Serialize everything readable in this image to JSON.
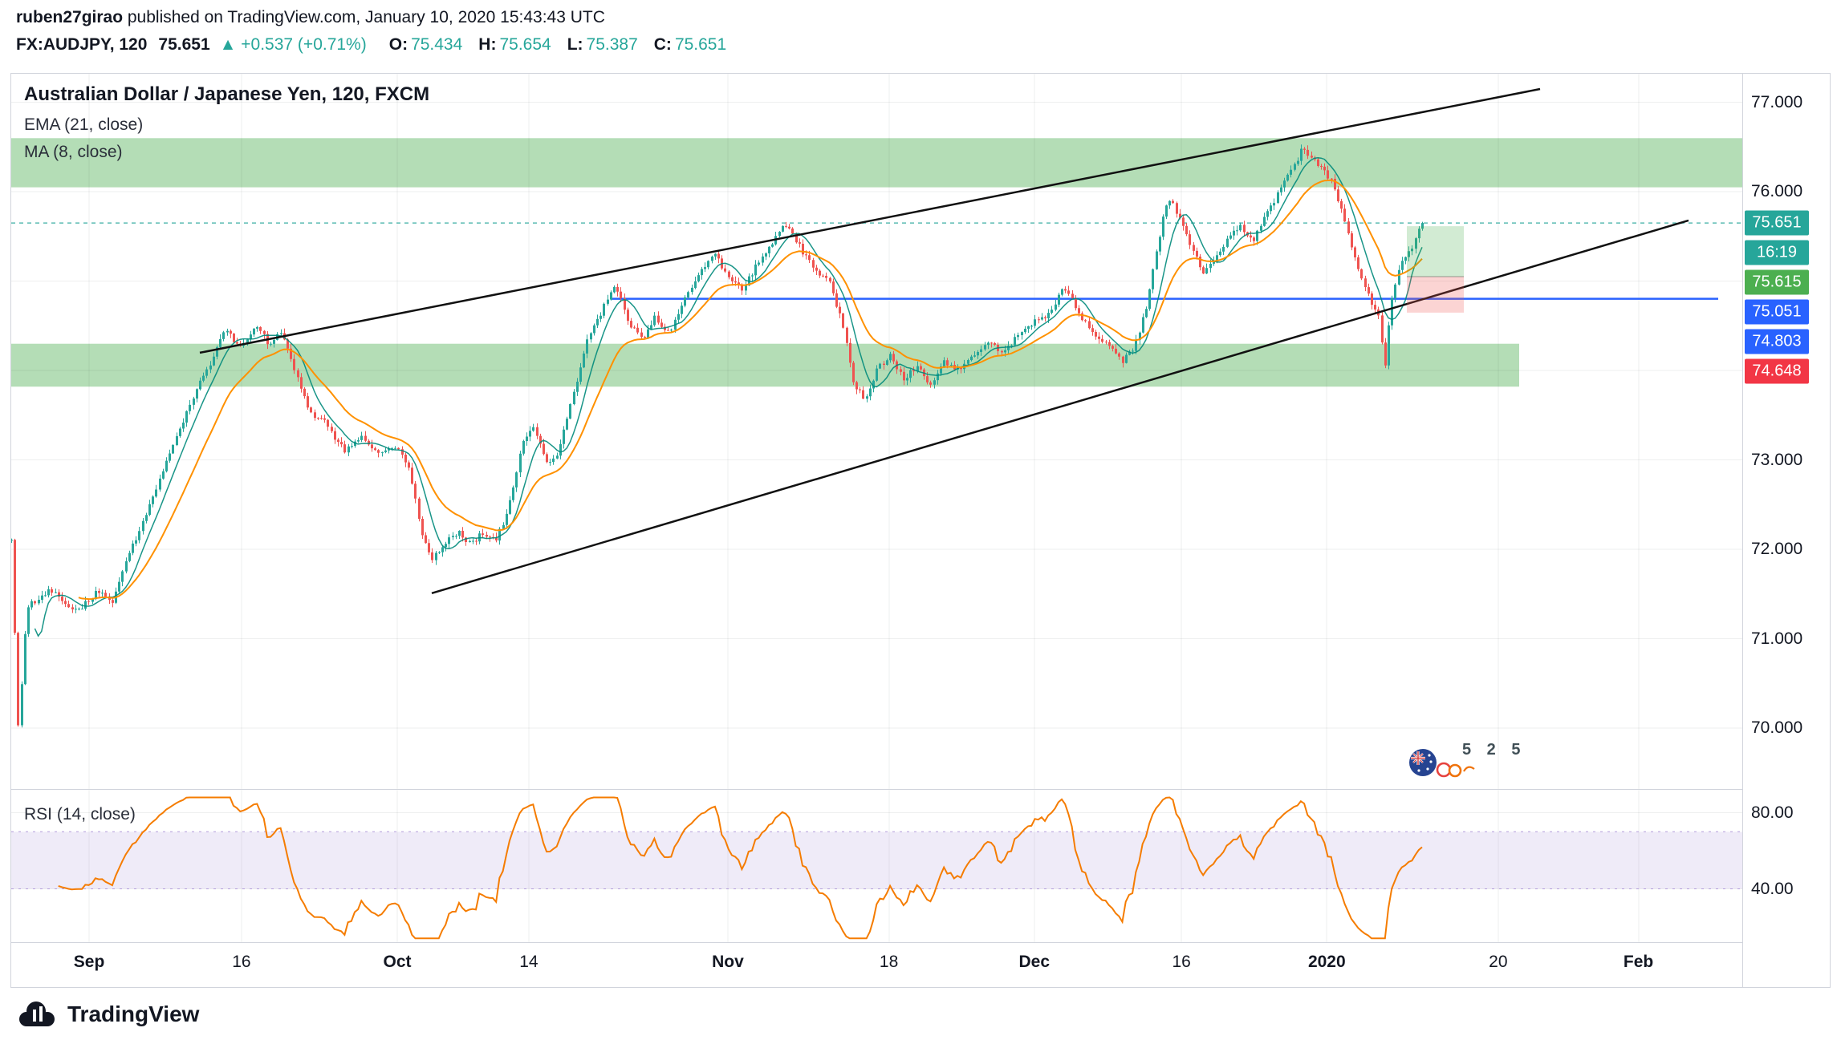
{
  "header": {
    "author": "ruben27girao",
    "published_text": " published on TradingView.com, January 10, 2020 15:43:43 UTC",
    "symbol": "FX:AUDJPY, 120",
    "last_price": "75.651",
    "change_arrow": "▲",
    "change_text": "+0.537 (+0.71%)",
    "ohlc": [
      {
        "label": "O:",
        "value": "75.434"
      },
      {
        "label": "H:",
        "value": "75.654"
      },
      {
        "label": "L:",
        "value": "75.387"
      },
      {
        "label": "C:",
        "value": "75.651"
      }
    ]
  },
  "legend": {
    "title": "Australian Dollar / Japanese Yen, 120, FXCM",
    "ema": "EMA (21, close)",
    "ma": "MA (8, close)",
    "rsi": "RSI (14, close)"
  },
  "watermark": {
    "digits": "5 2 5"
  },
  "price_scale": {
    "labels": [
      {
        "text": "77.000",
        "price": 77.0
      },
      {
        "text": "76.000",
        "price": 76.0
      },
      {
        "text": "73.000",
        "price": 73.0
      },
      {
        "text": "72.000",
        "price": 72.0
      },
      {
        "text": "71.000",
        "price": 71.0
      },
      {
        "text": "70.000",
        "price": 70.0
      }
    ],
    "badges": [
      {
        "text": "75.651",
        "price": 75.651,
        "color": "#26a69a",
        "name": "last-price"
      },
      {
        "text": "16:19",
        "countdown": true,
        "color": "#26a69a",
        "name": "countdown"
      },
      {
        "text": "75.615",
        "price": 75.615,
        "color": "#4caf50",
        "name": "target-level"
      },
      {
        "text": "75.051",
        "price": 75.051,
        "color": "#2962ff",
        "name": "entry-level"
      },
      {
        "text": "74.803",
        "price": 74.803,
        "color": "#2962ff",
        "name": "blue-level"
      },
      {
        "text": "74.648",
        "price": 74.648,
        "color": "#f23645",
        "name": "stop-level"
      }
    ]
  },
  "rsi_scale": {
    "labels": [
      {
        "text": "80.00",
        "value": 80
      },
      {
        "text": "40.00",
        "value": 40
      }
    ]
  },
  "footer": {
    "brand": "TradingView"
  },
  "chart_data": {
    "type": "candlestick",
    "title": "Australian Dollar / Japanese Yen, 120, FXCM",
    "symbol": "FX:AUDJPY",
    "interval_minutes": 120,
    "exchange": "FXCM",
    "last": {
      "open": 75.434,
      "high": 75.654,
      "low": 75.387,
      "close": 75.651,
      "change": "+0.537 (+0.71%)"
    },
    "y_axis": {
      "visible_min": 69.32,
      "visible_max": 77.32,
      "gridlines": [
        70,
        71,
        72,
        73,
        74,
        75,
        76,
        77
      ]
    },
    "x_axis": {
      "labels": [
        {
          "label": "Sep",
          "t": 0.045,
          "bold": true
        },
        {
          "label": "16",
          "t": 0.133,
          "bold": false
        },
        {
          "label": "Oct",
          "t": 0.223,
          "bold": true
        },
        {
          "label": "14",
          "t": 0.299,
          "bold": false
        },
        {
          "label": "Nov",
          "t": 0.414,
          "bold": true
        },
        {
          "label": "18",
          "t": 0.507,
          "bold": false
        },
        {
          "label": "Dec",
          "t": 0.591,
          "bold": true
        },
        {
          "label": "16",
          "t": 0.676,
          "bold": false
        },
        {
          "label": "2020",
          "t": 0.76,
          "bold": true
        },
        {
          "label": "20",
          "t": 0.859,
          "bold": false
        },
        {
          "label": "Feb",
          "t": 0.94,
          "bold": true
        }
      ]
    },
    "candle_count": 420,
    "candle_region_end": 0.815,
    "price_waypoints": [
      [
        0.0,
        72.1
      ],
      [
        0.004,
        70.0
      ],
      [
        0.009,
        71.35
      ],
      [
        0.022,
        71.55
      ],
      [
        0.038,
        71.3
      ],
      [
        0.05,
        71.55
      ],
      [
        0.058,
        71.4
      ],
      [
        0.065,
        71.8
      ],
      [
        0.078,
        72.4
      ],
      [
        0.092,
        73.1
      ],
      [
        0.105,
        73.7
      ],
      [
        0.115,
        74.1
      ],
      [
        0.124,
        74.45
      ],
      [
        0.132,
        74.25
      ],
      [
        0.141,
        74.5
      ],
      [
        0.149,
        74.3
      ],
      [
        0.155,
        74.45
      ],
      [
        0.163,
        74.05
      ],
      [
        0.172,
        73.55
      ],
      [
        0.182,
        73.4
      ],
      [
        0.192,
        73.1
      ],
      [
        0.202,
        73.25
      ],
      [
        0.212,
        73.05
      ],
      [
        0.222,
        73.15
      ],
      [
        0.23,
        72.9
      ],
      [
        0.237,
        72.2
      ],
      [
        0.243,
        71.9
      ],
      [
        0.25,
        72.05
      ],
      [
        0.258,
        72.2
      ],
      [
        0.265,
        72.05
      ],
      [
        0.272,
        72.2
      ],
      [
        0.28,
        72.1
      ],
      [
        0.287,
        72.45
      ],
      [
        0.295,
        73.2
      ],
      [
        0.302,
        73.35
      ],
      [
        0.309,
        72.95
      ],
      [
        0.316,
        73.1
      ],
      [
        0.324,
        73.7
      ],
      [
        0.333,
        74.35
      ],
      [
        0.342,
        74.7
      ],
      [
        0.349,
        74.95
      ],
      [
        0.356,
        74.55
      ],
      [
        0.364,
        74.35
      ],
      [
        0.372,
        74.6
      ],
      [
        0.38,
        74.4
      ],
      [
        0.389,
        74.85
      ],
      [
        0.398,
        75.1
      ],
      [
        0.406,
        75.35
      ],
      [
        0.413,
        75.05
      ],
      [
        0.422,
        74.9
      ],
      [
        0.431,
        75.2
      ],
      [
        0.44,
        75.45
      ],
      [
        0.448,
        75.65
      ],
      [
        0.455,
        75.4
      ],
      [
        0.463,
        75.15
      ],
      [
        0.472,
        75.0
      ],
      [
        0.48,
        74.55
      ],
      [
        0.487,
        73.8
      ],
      [
        0.493,
        73.7
      ],
      [
        0.5,
        74.0
      ],
      [
        0.508,
        74.2
      ],
      [
        0.515,
        73.9
      ],
      [
        0.523,
        74.05
      ],
      [
        0.531,
        73.85
      ],
      [
        0.539,
        74.1
      ],
      [
        0.547,
        74.0
      ],
      [
        0.556,
        74.2
      ],
      [
        0.565,
        74.3
      ],
      [
        0.574,
        74.2
      ],
      [
        0.583,
        74.45
      ],
      [
        0.592,
        74.55
      ],
      [
        0.601,
        74.65
      ],
      [
        0.608,
        74.95
      ],
      [
        0.615,
        74.7
      ],
      [
        0.623,
        74.45
      ],
      [
        0.632,
        74.3
      ],
      [
        0.641,
        74.1
      ],
      [
        0.648,
        74.25
      ],
      [
        0.655,
        74.65
      ],
      [
        0.662,
        75.4
      ],
      [
        0.668,
        75.95
      ],
      [
        0.674,
        75.75
      ],
      [
        0.681,
        75.4
      ],
      [
        0.688,
        75.1
      ],
      [
        0.695,
        75.25
      ],
      [
        0.703,
        75.5
      ],
      [
        0.71,
        75.6
      ],
      [
        0.717,
        75.45
      ],
      [
        0.724,
        75.7
      ],
      [
        0.731,
        75.95
      ],
      [
        0.738,
        76.2
      ],
      [
        0.745,
        76.45
      ],
      [
        0.751,
        76.4
      ],
      [
        0.757,
        76.25
      ],
      [
        0.763,
        76.1
      ],
      [
        0.769,
        75.75
      ],
      [
        0.776,
        75.25
      ],
      [
        0.782,
        74.95
      ],
      [
        0.787,
        74.7
      ],
      [
        0.79,
        74.6
      ],
      [
        0.7935,
        74.05
      ],
      [
        0.797,
        74.8
      ],
      [
        0.801,
        75.1
      ],
      [
        0.806,
        75.3
      ],
      [
        0.811,
        75.45
      ],
      [
        0.815,
        75.651
      ]
    ],
    "indicators": [
      {
        "name": "EMA",
        "params": "21, close"
      },
      {
        "name": "MA",
        "params": "8, close"
      },
      {
        "name": "RSI",
        "params": "14, close"
      }
    ],
    "zones": [
      {
        "t_from": 0.0,
        "t_to": 1.0,
        "price_from": 76.05,
        "price_to": 76.6
      },
      {
        "t_from": 0.0,
        "t_to": 0.871,
        "price_from": 73.82,
        "price_to": 74.3
      }
    ],
    "trendlines": [
      {
        "t1": 0.109,
        "p1": 74.2,
        "t2": 0.883,
        "p2": 77.15
      },
      {
        "t1": 0.243,
        "p1": 71.51,
        "t2": 0.969,
        "p2": 75.68
      }
    ],
    "horizontal_line": {
      "price": 74.803,
      "t_from": 0.347,
      "t_to": 0.986
    },
    "last_price_line": {
      "price": 75.651
    },
    "position_tool": {
      "t_from": 0.806,
      "t_to": 0.839,
      "target": 75.615,
      "entry": 75.051,
      "stop": 74.648
    },
    "rsi": {
      "period": 14,
      "band_upper": 70,
      "band_lower": 40,
      "scale_min": 12,
      "scale_max": 92,
      "gridlines": [
        80,
        40
      ],
      "line_color": "#f57c00",
      "band_fill": "rgba(126,87,194,0.12)",
      "band_line": "#b39ddb"
    },
    "colors": {
      "up": "#26a69a",
      "down": "#ef5350",
      "ema21": "#ff9100",
      "ma8": "#00897b",
      "grid": "rgba(42,46,57,0.08)",
      "trendline": "#111111",
      "level_blue": "#2962ff",
      "zone_green": "rgba(76,175,80,0.42)",
      "last_price_dash": "rgba(38,166,154,0.75)"
    }
  }
}
